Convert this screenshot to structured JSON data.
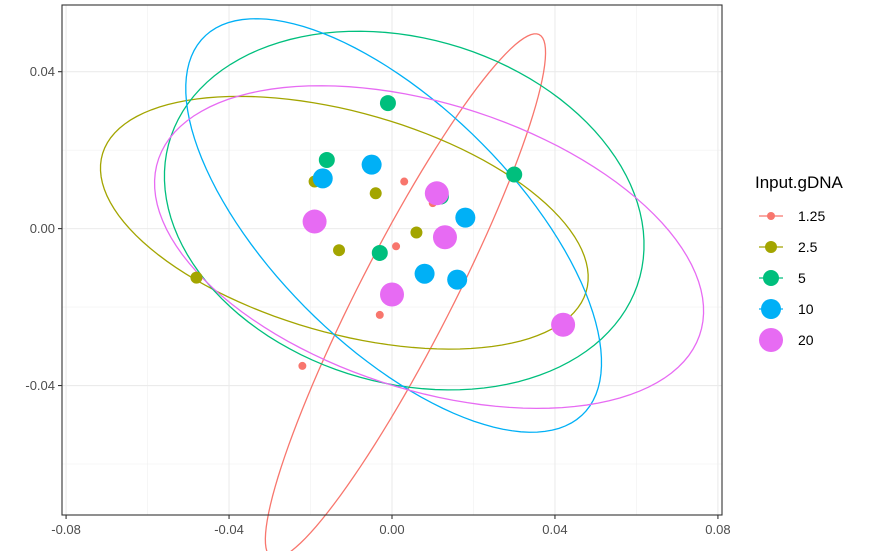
{
  "chart_data": {
    "type": "scatter",
    "title": "",
    "xlabel": "",
    "ylabel": "",
    "xlim": [
      -0.081,
      0.081
    ],
    "ylim": [
      -0.073,
      0.057
    ],
    "x_ticks": [
      -0.08,
      -0.04,
      0.0,
      0.04,
      0.08
    ],
    "x_tick_labels": [
      "-0.08",
      "-0.04",
      "0.00",
      "0.04",
      "0.08"
    ],
    "y_ticks": [
      -0.04,
      0.0,
      0.04
    ],
    "y_tick_labels": [
      "-0.04",
      "0.00",
      "0.04"
    ],
    "grid": true,
    "legend": {
      "title": "Input.gDNA",
      "position": "right"
    },
    "series": [
      {
        "name": "1.25",
        "color": "#F8766D",
        "point_size": 4,
        "points": [
          [
            0.003,
            0.012
          ],
          [
            0.01,
            0.0065
          ],
          [
            0.001,
            -0.0045
          ],
          [
            -0.003,
            -0.022
          ],
          [
            -0.022,
            -0.035
          ]
        ],
        "ellipse": {
          "cx": 0.0033,
          "cy": -0.0172,
          "rx": 0.0743,
          "ry": 0.0115,
          "angle_deg": 63.8
        }
      },
      {
        "name": "2.5",
        "color": "#A3A500",
        "point_size": 6,
        "points": [
          [
            -0.019,
            0.012
          ],
          [
            -0.004,
            0.009
          ],
          [
            0.012,
            0.008
          ],
          [
            0.006,
            -0.001
          ],
          [
            -0.013,
            -0.0055
          ],
          [
            -0.048,
            -0.0125
          ]
        ],
        "ellipse": {
          "cx": -0.0117,
          "cy": 0.0015,
          "rx": 0.0619,
          "ry": 0.0281,
          "angle_deg": -16.6
        }
      },
      {
        "name": "5",
        "color": "#00BF7D",
        "point_size": 8,
        "points": [
          [
            -0.001,
            0.032
          ],
          [
            -0.016,
            0.0175
          ],
          [
            0.03,
            0.0138
          ],
          [
            0.012,
            0.0082
          ],
          [
            -0.003,
            -0.0062
          ]
        ],
        "ellipse": {
          "cx": 0.003,
          "cy": 0.0046,
          "rx": 0.0603,
          "ry": 0.0438,
          "angle_deg": -18.4
        }
      },
      {
        "name": "10",
        "color": "#00B0F6",
        "point_size": 10,
        "points": [
          [
            -0.005,
            0.0163
          ],
          [
            -0.017,
            0.0128
          ],
          [
            0.018,
            0.0028
          ],
          [
            0.008,
            -0.0115
          ],
          [
            0.016,
            -0.013
          ]
        ],
        "ellipse": {
          "cx": 0.0004,
          "cy": 0.0008,
          "rx": 0.0669,
          "ry": 0.0301,
          "angle_deg": -46.4
        }
      },
      {
        "name": "20",
        "color": "#E76BF3",
        "point_size": 12,
        "points": [
          [
            0.011,
            0.009
          ],
          [
            -0.019,
            0.0018
          ],
          [
            0.013,
            -0.0022
          ],
          [
            0.0,
            -0.0168
          ],
          [
            0.042,
            -0.0245
          ]
        ],
        "ellipse": {
          "cx": 0.0091,
          "cy": -0.0047,
          "rx": 0.0701,
          "ry": 0.0363,
          "angle_deg": -18.8
        }
      }
    ]
  }
}
